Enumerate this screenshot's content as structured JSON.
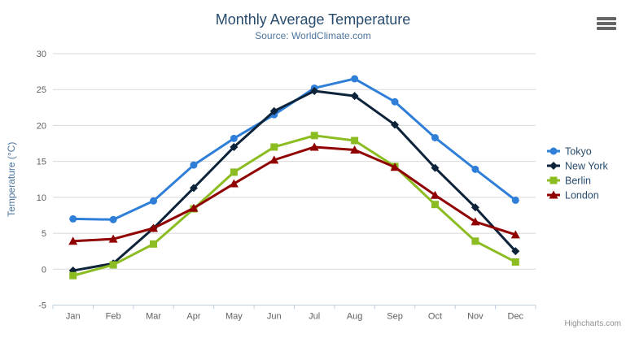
{
  "header": {
    "title": "Monthly Average Temperature",
    "subtitle": "Source: WorldClimate.com"
  },
  "credits": "Highcharts.com",
  "colors": {
    "title_text": "#274b6d",
    "subtitle_text": "#4d759e",
    "axis_label": "#606060",
    "axis_title": "#4d759e",
    "legend_text": "#274b6d",
    "gridline": "#d8d8d8",
    "axis_line": "#c0d0e0",
    "context_icon": "#666666",
    "credits_text": "#909090"
  },
  "chart_data": {
    "type": "line",
    "title": "Monthly Average Temperature",
    "subtitle": "Source: WorldClimate.com",
    "categories": [
      "Jan",
      "Feb",
      "Mar",
      "Apr",
      "May",
      "Jun",
      "Jul",
      "Aug",
      "Sep",
      "Oct",
      "Nov",
      "Dec"
    ],
    "series": [
      {
        "name": "Tokyo",
        "color": "#2f7ed8",
        "marker": "circle",
        "values": [
          7.0,
          6.9,
          9.5,
          14.5,
          18.2,
          21.5,
          25.2,
          26.5,
          23.3,
          18.3,
          13.9,
          9.6
        ]
      },
      {
        "name": "New York",
        "color": "#0d233a",
        "marker": "diamond",
        "values": [
          -0.2,
          0.8,
          5.7,
          11.3,
          17.0,
          22.0,
          24.8,
          24.1,
          20.1,
          14.1,
          8.6,
          2.5
        ]
      },
      {
        "name": "Berlin",
        "color": "#8bbc21",
        "marker": "square",
        "values": [
          -0.9,
          0.6,
          3.5,
          8.4,
          13.5,
          17.0,
          18.6,
          17.9,
          14.3,
          9.0,
          3.9,
          1.0
        ]
      },
      {
        "name": "London",
        "color": "#910000",
        "marker": "triangle",
        "values": [
          3.9,
          4.2,
          5.7,
          8.5,
          11.9,
          15.2,
          17.0,
          16.6,
          14.2,
          10.3,
          6.6,
          4.8
        ]
      }
    ],
    "xlabel": "",
    "ylabel": "Temperature (°C)",
    "ylim": [
      -5,
      30
    ],
    "ytick_interval": 5,
    "grid": true,
    "legend_position": "right"
  }
}
